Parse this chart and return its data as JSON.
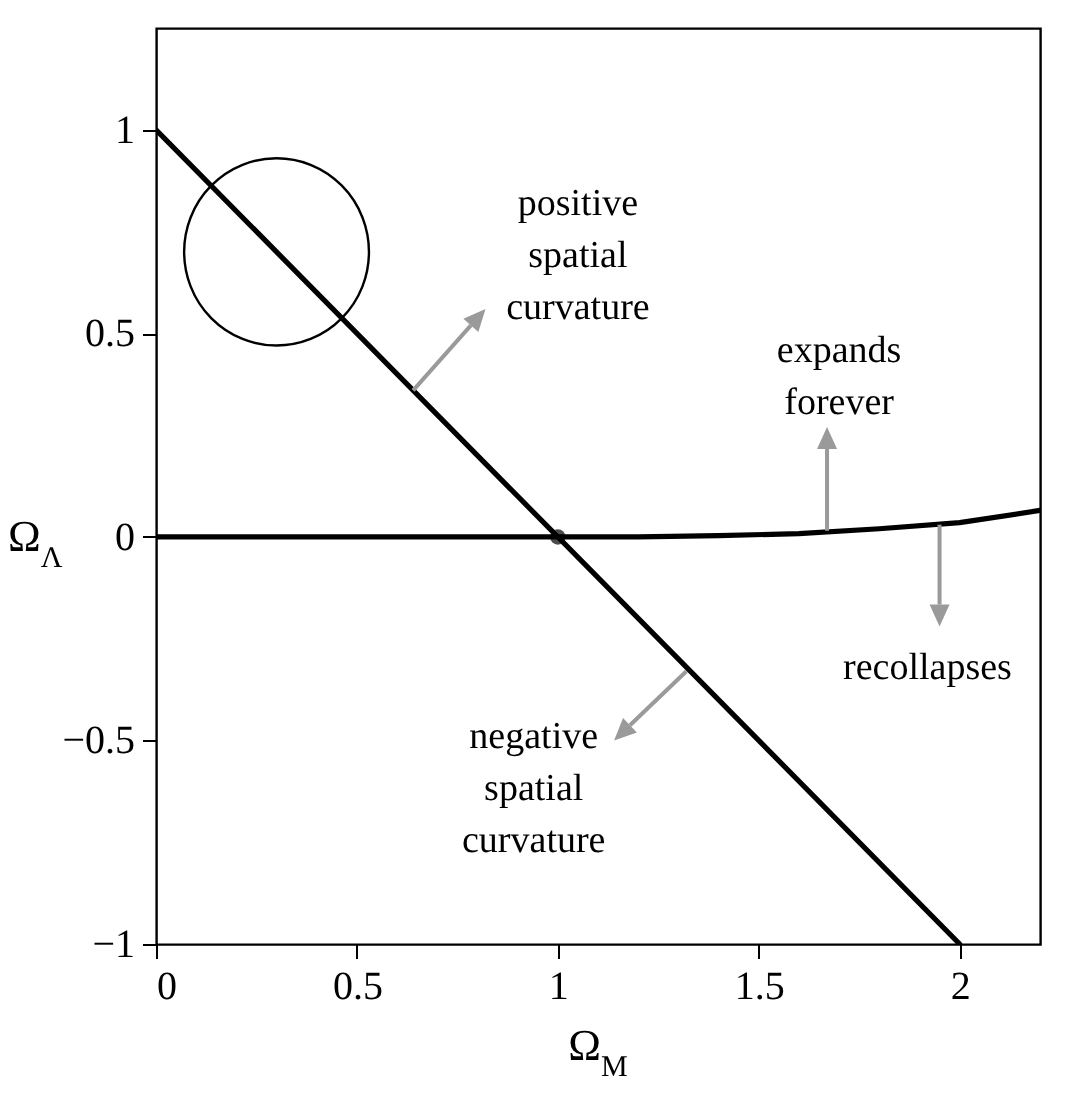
{
  "chart_data": {
    "type": "line",
    "xlabel": "Ω$_{M}$",
    "ylabel": "Ω$_{Λ}$",
    "xlim": [
      0,
      2.2
    ],
    "ylim": [
      -1,
      1.25
    ],
    "xticks": [
      0,
      0.5,
      1,
      1.5,
      2
    ],
    "yticks": [
      -1,
      -0.5,
      0,
      0.5,
      1
    ],
    "grid": false,
    "series": [
      {
        "color": "#000000",
        "x": [
          0,
          2
        ],
        "values": [
          1,
          -1
        ]
      },
      {
        "color": "#000000",
        "x": [
          0,
          0.5,
          1,
          1.2,
          1.4,
          1.6,
          1.8,
          2,
          2.2
        ],
        "values": [
          0,
          0,
          0,
          0,
          0.003,
          0.008,
          0.02,
          0.035,
          0.065
        ]
      },
      {
        "type": "scatter",
        "color": "#000000",
        "x": [
          1
        ],
        "values": [
          0
        ]
      }
    ],
    "annotations": [
      {
        "text": "positive spatial curvature",
        "x": 0.64,
        "y": 0.36
      },
      {
        "text": "expands forever",
        "x": 1.67,
        "y": 0.015
      },
      {
        "text": "negative spatial curvature",
        "x": 1.32,
        "y": -0.33
      },
      {
        "text": "recollapses",
        "x": 1.95,
        "y": 0.03
      }
    ]
  }
}
